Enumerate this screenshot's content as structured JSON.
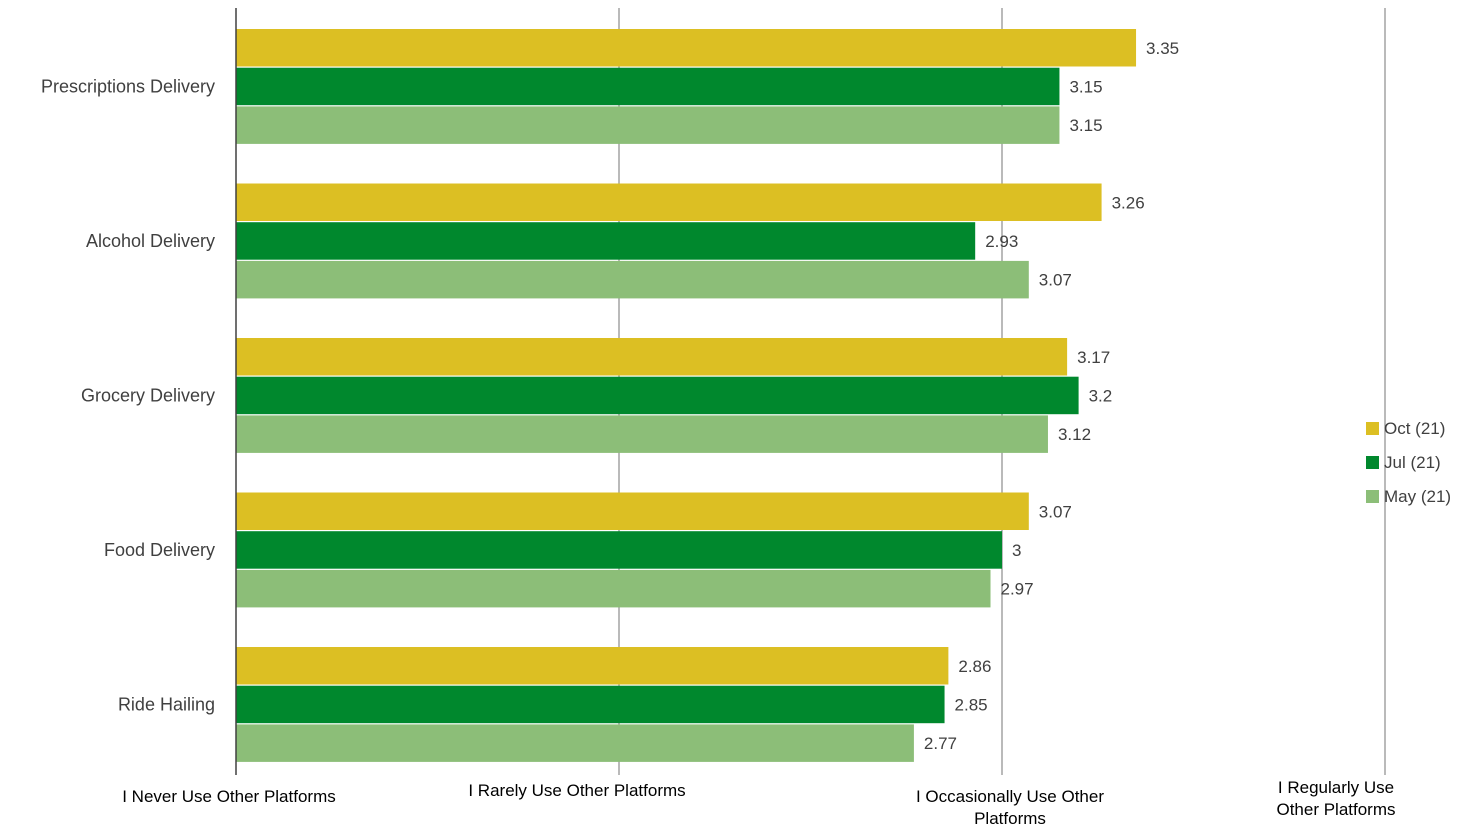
{
  "chart_data": {
    "type": "bar",
    "orientation": "horizontal",
    "categories": [
      "Prescriptions Delivery",
      "Alcohol Delivery",
      "Grocery Delivery",
      "Food Delivery",
      "Ride Hailing"
    ],
    "series": [
      {
        "name": "Oct (21)",
        "values": [
          3.35,
          3.26,
          3.17,
          3.07,
          2.86
        ],
        "color": "#dcbf23"
      },
      {
        "name": "Jul (21)",
        "values": [
          3.15,
          2.93,
          3.2,
          3.0,
          2.85
        ],
        "color": "#00882d"
      },
      {
        "name": "May (21)",
        "values": [
          3.15,
          3.07,
          3.12,
          2.97,
          2.77
        ],
        "color": "#8cbe78"
      }
    ],
    "value_labels": [
      [
        "3.35",
        "3.26",
        "3.17",
        "3.07",
        "2.86"
      ],
      [
        "3.15",
        "2.93",
        "3.2",
        "3",
        "2.85"
      ],
      [
        "3.15",
        "3.07",
        "3.12",
        "2.97",
        "2.77"
      ]
    ],
    "xlim": [
      1,
      4
    ],
    "xticks": [
      1,
      2,
      3,
      4
    ],
    "xtick_labels": [
      [
        "I Never Use Other Platforms"
      ],
      [
        "I Rarely Use Other Platforms"
      ],
      [
        "I Occasionally Use Other",
        "Platforms"
      ],
      [
        "I Regularly Use",
        "Other Platforms"
      ]
    ],
    "title": "",
    "xlabel": "",
    "ylabel": "",
    "grid": "vertical",
    "legend": "right"
  }
}
